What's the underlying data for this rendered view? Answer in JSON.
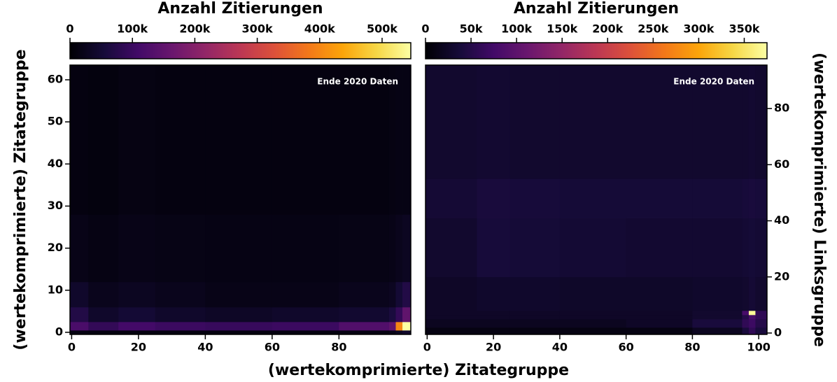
{
  "chart_data": [
    {
      "type": "heatmap",
      "title": "Anzahl Zitierungen",
      "annotation": "Ende 2020 Daten",
      "xlabel": "(wertekomprimierte) Zitategruppe",
      "ylabel": "(wertekomprimierte) Zitategruppe",
      "yaxis_side": "left",
      "colormap": "inferno",
      "x_edges": [
        -0.5,
        5,
        14,
        25,
        40,
        60,
        80,
        95,
        97,
        99,
        101.5
      ],
      "y_edges": [
        -0.5,
        0.5,
        2.5,
        6,
        12,
        28,
        63.5
      ],
      "values": [
        [
          15000,
          12000,
          12000,
          12000,
          12000,
          12000,
          15000,
          20000,
          30000,
          40000
        ],
        [
          120000,
          90000,
          110000,
          100000,
          95000,
          100000,
          130000,
          150000,
          400000,
          550000
        ],
        [
          70000,
          40000,
          50000,
          40000,
          35000,
          40000,
          45000,
          60000,
          90000,
          150000
        ],
        [
          40000,
          25000,
          30000,
          25000,
          20000,
          20000,
          25000,
          30000,
          50000,
          70000
        ],
        [
          20000,
          15000,
          20000,
          18000,
          16000,
          16000,
          18000,
          20000,
          25000,
          30000
        ],
        [
          12000,
          10000,
          14000,
          12000,
          12000,
          12000,
          12000,
          14000,
          16000,
          16000
        ]
      ],
      "xlim": [
        -0.5,
        101.5
      ],
      "ylim": [
        -0.5,
        63.5
      ],
      "xticks": [
        0,
        20,
        40,
        60,
        80
      ],
      "yticks": [
        0,
        10,
        20,
        30,
        40,
        50,
        60
      ],
      "clim": [
        0,
        546000
      ],
      "cticks": [
        0,
        {
          "value": 100000,
          "label": "100k"
        },
        {
          "value": 200000,
          "label": "200k"
        },
        {
          "value": 300000,
          "label": "300k"
        },
        {
          "value": 400000,
          "label": "400k"
        },
        {
          "value": 500000,
          "label": "500k"
        }
      ]
    },
    {
      "type": "heatmap",
      "title": "Anzahl Zitierungen",
      "annotation": "Ende 2020 Daten",
      "ylabel": "(wertekomprimierte) Linksgruppe",
      "yaxis_side": "right",
      "colormap": "inferno",
      "x_edges": [
        -0.5,
        15,
        25,
        40,
        60,
        80,
        95,
        97,
        99,
        102.5
      ],
      "y_edges": [
        -0.5,
        2,
        5,
        6.5,
        8,
        20,
        41,
        55,
        95.5
      ],
      "values": [
        [
          10000,
          10000,
          10000,
          10000,
          10000,
          20000,
          40000,
          60000,
          40000
        ],
        [
          20000,
          20000,
          20000,
          20000,
          25000,
          40000,
          60000,
          70000,
          50000
        ],
        [
          25000,
          25000,
          25000,
          25000,
          25000,
          30000,
          50000,
          80000,
          60000
        ],
        [
          25000,
          25000,
          25000,
          25000,
          25000,
          30000,
          80000,
          370000,
          60000
        ],
        [
          25000,
          28000,
          28000,
          26000,
          26000,
          28000,
          30000,
          35000,
          30000
        ],
        [
          30000,
          38000,
          36000,
          34000,
          32000,
          32000,
          34000,
          36000,
          34000
        ],
        [
          35000,
          40000,
          38000,
          36000,
          36000,
          36000,
          38000,
          40000,
          38000
        ],
        [
          30000,
          32000,
          30000,
          30000,
          30000,
          30000,
          30000,
          32000,
          30000
        ]
      ],
      "xlim": [
        -0.5,
        102.5
      ],
      "ylim": [
        -0.5,
        95.5
      ],
      "xticks": [
        0,
        20,
        40,
        60,
        80,
        100
      ],
      "yticks": [
        0,
        20,
        40,
        60,
        80
      ],
      "clim": [
        0,
        375000
      ],
      "cticks": [
        0,
        {
          "value": 50000,
          "label": "50k"
        },
        {
          "value": 100000,
          "label": "100k"
        },
        {
          "value": 150000,
          "label": "150k"
        },
        {
          "value": 200000,
          "label": "200k"
        },
        {
          "value": 250000,
          "label": "250k"
        },
        {
          "value": 300000,
          "label": "300k"
        },
        {
          "value": 350000,
          "label": "350k"
        }
      ]
    }
  ]
}
